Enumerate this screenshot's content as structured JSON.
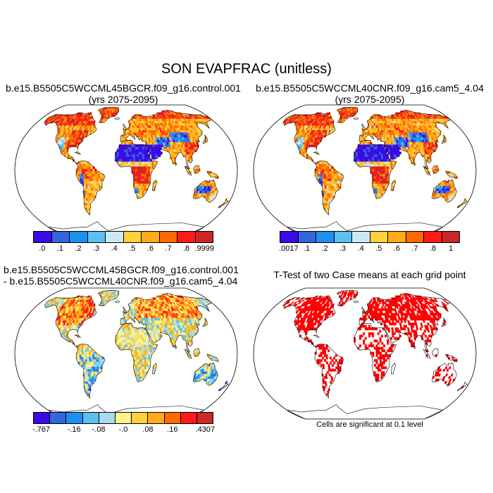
{
  "figure": {
    "title": "SON EVAPFRAC (unitless)"
  },
  "panels": [
    {
      "id": "control",
      "title_line1": "b.e15.B5505C5WCCML45BGCR.f09_g16.control.001",
      "title_line2": "(yrs 2075-2095)",
      "field": "EVAPFRAC",
      "colorbar": {
        "labels": [
          ".0",
          ".1",
          ".2",
          ".3",
          ".4",
          ".5",
          ".6",
          ".7",
          ".8",
          ".9999"
        ],
        "colors": [
          "#3a0ae8",
          "#3366dd",
          "#1e8ff0",
          "#5cc0ee",
          "#cce8f4",
          "#ffd23c",
          "#ffaa1a",
          "#ff6a00",
          "#ff1a1a",
          "#cc2626"
        ]
      }
    },
    {
      "id": "cam5",
      "title_line1": "b.e15.B5505C5WCCML40CNR.f09_g16.cam5_4.04",
      "title_line2": "(yrs 2075-2095)",
      "field": "EVAPFRAC",
      "colorbar": {
        "labels": [
          ".0017",
          ".1",
          ".2",
          ".3",
          ".4",
          ".5",
          ".6",
          ".7",
          ".8",
          "1"
        ],
        "colors": [
          "#3a0ae8",
          "#3366dd",
          "#1e8ff0",
          "#5cc0ee",
          "#cce8f4",
          "#ffd23c",
          "#ffaa1a",
          "#ff6a00",
          "#ff1a1a",
          "#cc2626"
        ]
      }
    },
    {
      "id": "difference",
      "title_line1": "b.e15.B5505C5WCCML45BGCR.f09_g16.control.001",
      "title_line2": "- b.e15.B5505C5WCCML40CNR.f09_g16.cam5_4.04",
      "field": "EVAPFRAC difference",
      "colorbar": {
        "labels": [
          "-.767",
          "-.16",
          "-.08",
          "-.0",
          ".08",
          ".16",
          ".4307"
        ],
        "colors": [
          "#3a0ae8",
          "#3366dd",
          "#1e8ff0",
          "#5cc0ee",
          "#a8daf0",
          "#fff28a",
          "#ffd23c",
          "#ffaa1a",
          "#ff6a00",
          "#ff1a1a",
          "#cc2626"
        ]
      }
    },
    {
      "id": "ttest",
      "title_line1": "T-Test of two Case means at each grid point",
      "note": "Cells are significant at 0.1 level",
      "significance_level": 0.1,
      "significant_color": "#ff0000"
    }
  ]
}
